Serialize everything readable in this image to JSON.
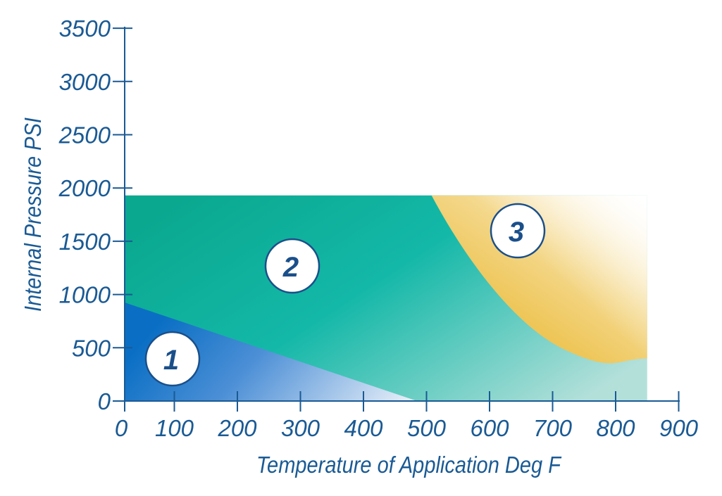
{
  "chart_data": {
    "type": "area",
    "title": "",
    "xlabel": "Temperature of Application Deg F",
    "ylabel": "Internal Pressure PSI",
    "xlim": [
      0,
      900
    ],
    "ylim": [
      0,
      3500
    ],
    "x_ticks": [
      "0",
      "100",
      "200",
      "300",
      "400",
      "500",
      "600",
      "700",
      "800",
      "900"
    ],
    "y_ticks": [
      "0",
      "500",
      "1000",
      "1500",
      "2000",
      "2500",
      "3000",
      "3500"
    ],
    "grid": false,
    "regions": [
      {
        "label": "1",
        "polygon": [
          [
            0,
            0
          ],
          [
            0,
            925
          ],
          [
            485,
            0
          ]
        ],
        "color": "#0a6fc4"
      },
      {
        "label": "2",
        "polygon": [
          [
            0,
            0
          ],
          [
            0,
            1930
          ],
          [
            850,
            1930
          ],
          [
            850,
            0
          ]
        ],
        "color": "#10ad9a"
      },
      {
        "label": "3",
        "boundary": [
          [
            508,
            1930
          ],
          [
            560,
            1500
          ],
          [
            620,
            1000
          ],
          [
            690,
            650
          ],
          [
            770,
            450
          ],
          [
            850,
            400
          ]
        ],
        "upper_right": [
          [
            850,
            1930
          ]
        ],
        "color": "#f0c24a"
      }
    ],
    "zone_labels": [
      "1",
      "2",
      "3"
    ],
    "colors": {
      "axis": "#1a5a94",
      "text": "#1a5a94",
      "zone1": "#0a6fc4",
      "zone2": "#10ad9a",
      "zone3": "#f0c24a"
    }
  }
}
